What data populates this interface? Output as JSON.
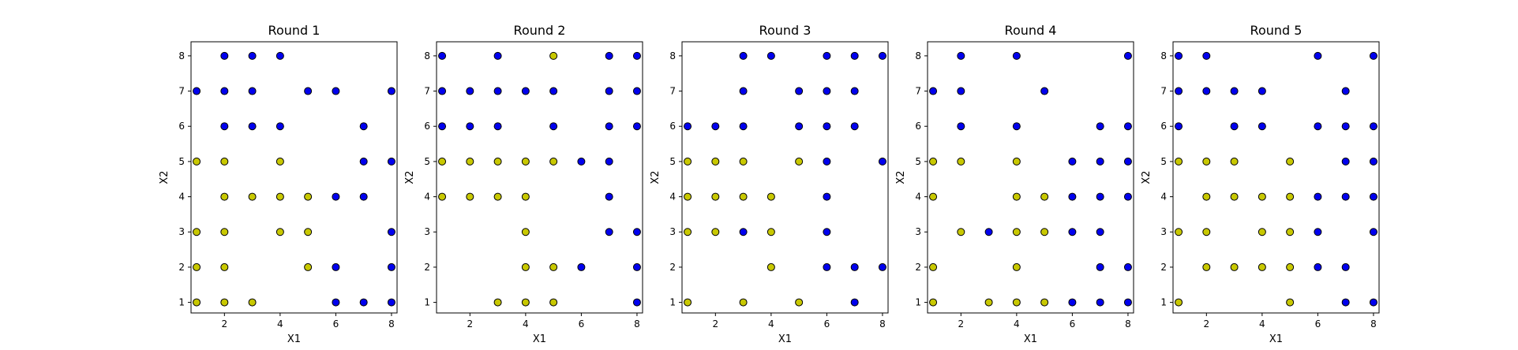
{
  "chart_data": [
    {
      "type": "scatter",
      "title": "Round 1",
      "xlabel": "X1",
      "ylabel": "X2",
      "xlim": [
        0.8,
        8.2
      ],
      "ylim": [
        0.7,
        8.4
      ],
      "xticks": [
        2,
        4,
        6,
        8
      ],
      "yticks": [
        1,
        2,
        3,
        4,
        5,
        6,
        7,
        8
      ],
      "colors": {
        "yellow": "#c8c800",
        "blue": "#0000ee"
      },
      "points": [
        {
          "x": 2,
          "y": 8,
          "c": "blue"
        },
        {
          "x": 3,
          "y": 8,
          "c": "blue"
        },
        {
          "x": 4,
          "y": 8,
          "c": "blue"
        },
        {
          "x": 1,
          "y": 7,
          "c": "blue"
        },
        {
          "x": 2,
          "y": 7,
          "c": "blue"
        },
        {
          "x": 3,
          "y": 7,
          "c": "blue"
        },
        {
          "x": 5,
          "y": 7,
          "c": "blue"
        },
        {
          "x": 6,
          "y": 7,
          "c": "blue"
        },
        {
          "x": 8,
          "y": 7,
          "c": "blue"
        },
        {
          "x": 2,
          "y": 6,
          "c": "blue"
        },
        {
          "x": 3,
          "y": 6,
          "c": "blue"
        },
        {
          "x": 4,
          "y": 6,
          "c": "blue"
        },
        {
          "x": 7,
          "y": 6,
          "c": "blue"
        },
        {
          "x": 1,
          "y": 5,
          "c": "yellow"
        },
        {
          "x": 2,
          "y": 5,
          "c": "yellow"
        },
        {
          "x": 4,
          "y": 5,
          "c": "yellow"
        },
        {
          "x": 7,
          "y": 5,
          "c": "blue"
        },
        {
          "x": 8,
          "y": 5,
          "c": "blue"
        },
        {
          "x": 2,
          "y": 4,
          "c": "yellow"
        },
        {
          "x": 3,
          "y": 4,
          "c": "yellow"
        },
        {
          "x": 4,
          "y": 4,
          "c": "yellow"
        },
        {
          "x": 5,
          "y": 4,
          "c": "yellow"
        },
        {
          "x": 6,
          "y": 4,
          "c": "blue"
        },
        {
          "x": 7,
          "y": 4,
          "c": "blue"
        },
        {
          "x": 1,
          "y": 3,
          "c": "yellow"
        },
        {
          "x": 2,
          "y": 3,
          "c": "yellow"
        },
        {
          "x": 4,
          "y": 3,
          "c": "yellow"
        },
        {
          "x": 5,
          "y": 3,
          "c": "yellow"
        },
        {
          "x": 8,
          "y": 3,
          "c": "blue"
        },
        {
          "x": 1,
          "y": 2,
          "c": "yellow"
        },
        {
          "x": 2,
          "y": 2,
          "c": "yellow"
        },
        {
          "x": 5,
          "y": 2,
          "c": "yellow"
        },
        {
          "x": 6,
          "y": 2,
          "c": "blue"
        },
        {
          "x": 8,
          "y": 2,
          "c": "blue"
        },
        {
          "x": 1,
          "y": 1,
          "c": "yellow"
        },
        {
          "x": 2,
          "y": 1,
          "c": "yellow"
        },
        {
          "x": 3,
          "y": 1,
          "c": "yellow"
        },
        {
          "x": 6,
          "y": 1,
          "c": "blue"
        },
        {
          "x": 7,
          "y": 1,
          "c": "blue"
        },
        {
          "x": 8,
          "y": 1,
          "c": "blue"
        }
      ]
    },
    {
      "type": "scatter",
      "title": "Round 2",
      "xlabel": "X1",
      "ylabel": "X2",
      "xlim": [
        0.8,
        8.2
      ],
      "ylim": [
        0.7,
        8.4
      ],
      "xticks": [
        2,
        4,
        6,
        8
      ],
      "yticks": [
        1,
        2,
        3,
        4,
        5,
        6,
        7,
        8
      ],
      "colors": {
        "yellow": "#c8c800",
        "blue": "#0000ee"
      },
      "points": [
        {
          "x": 1,
          "y": 8,
          "c": "blue"
        },
        {
          "x": 3,
          "y": 8,
          "c": "blue"
        },
        {
          "x": 5,
          "y": 8,
          "c": "yellow"
        },
        {
          "x": 7,
          "y": 8,
          "c": "blue"
        },
        {
          "x": 8,
          "y": 8,
          "c": "blue"
        },
        {
          "x": 1,
          "y": 7,
          "c": "blue"
        },
        {
          "x": 2,
          "y": 7,
          "c": "blue"
        },
        {
          "x": 3,
          "y": 7,
          "c": "blue"
        },
        {
          "x": 4,
          "y": 7,
          "c": "blue"
        },
        {
          "x": 5,
          "y": 7,
          "c": "blue"
        },
        {
          "x": 7,
          "y": 7,
          "c": "blue"
        },
        {
          "x": 8,
          "y": 7,
          "c": "blue"
        },
        {
          "x": 1,
          "y": 6,
          "c": "blue"
        },
        {
          "x": 2,
          "y": 6,
          "c": "blue"
        },
        {
          "x": 3,
          "y": 6,
          "c": "blue"
        },
        {
          "x": 5,
          "y": 6,
          "c": "blue"
        },
        {
          "x": 7,
          "y": 6,
          "c": "blue"
        },
        {
          "x": 8,
          "y": 6,
          "c": "blue"
        },
        {
          "x": 1,
          "y": 5,
          "c": "yellow"
        },
        {
          "x": 2,
          "y": 5,
          "c": "yellow"
        },
        {
          "x": 3,
          "y": 5,
          "c": "yellow"
        },
        {
          "x": 4,
          "y": 5,
          "c": "yellow"
        },
        {
          "x": 5,
          "y": 5,
          "c": "yellow"
        },
        {
          "x": 6,
          "y": 5,
          "c": "blue"
        },
        {
          "x": 7,
          "y": 5,
          "c": "blue"
        },
        {
          "x": 1,
          "y": 4,
          "c": "yellow"
        },
        {
          "x": 2,
          "y": 4,
          "c": "yellow"
        },
        {
          "x": 3,
          "y": 4,
          "c": "yellow"
        },
        {
          "x": 4,
          "y": 4,
          "c": "yellow"
        },
        {
          "x": 7,
          "y": 4,
          "c": "blue"
        },
        {
          "x": 4,
          "y": 3,
          "c": "yellow"
        },
        {
          "x": 7,
          "y": 3,
          "c": "blue"
        },
        {
          "x": 8,
          "y": 3,
          "c": "blue"
        },
        {
          "x": 4,
          "y": 2,
          "c": "yellow"
        },
        {
          "x": 5,
          "y": 2,
          "c": "yellow"
        },
        {
          "x": 6,
          "y": 2,
          "c": "blue"
        },
        {
          "x": 8,
          "y": 2,
          "c": "blue"
        },
        {
          "x": 3,
          "y": 1,
          "c": "yellow"
        },
        {
          "x": 4,
          "y": 1,
          "c": "yellow"
        },
        {
          "x": 5,
          "y": 1,
          "c": "yellow"
        },
        {
          "x": 8,
          "y": 1,
          "c": "blue"
        }
      ]
    },
    {
      "type": "scatter",
      "title": "Round 3",
      "xlabel": "X1",
      "ylabel": "X2",
      "xlim": [
        0.8,
        8.2
      ],
      "ylim": [
        0.7,
        8.4
      ],
      "xticks": [
        2,
        4,
        6,
        8
      ],
      "yticks": [
        1,
        2,
        3,
        4,
        5,
        6,
        7,
        8
      ],
      "colors": {
        "yellow": "#c8c800",
        "blue": "#0000ee"
      },
      "points": [
        {
          "x": 3,
          "y": 8,
          "c": "blue"
        },
        {
          "x": 4,
          "y": 8,
          "c": "blue"
        },
        {
          "x": 6,
          "y": 8,
          "c": "blue"
        },
        {
          "x": 7,
          "y": 8,
          "c": "blue"
        },
        {
          "x": 8,
          "y": 8,
          "c": "blue"
        },
        {
          "x": 3,
          "y": 7,
          "c": "blue"
        },
        {
          "x": 5,
          "y": 7,
          "c": "blue"
        },
        {
          "x": 6,
          "y": 7,
          "c": "blue"
        },
        {
          "x": 7,
          "y": 7,
          "c": "blue"
        },
        {
          "x": 1,
          "y": 6,
          "c": "blue"
        },
        {
          "x": 2,
          "y": 6,
          "c": "blue"
        },
        {
          "x": 3,
          "y": 6,
          "c": "blue"
        },
        {
          "x": 5,
          "y": 6,
          "c": "blue"
        },
        {
          "x": 6,
          "y": 6,
          "c": "blue"
        },
        {
          "x": 7,
          "y": 6,
          "c": "blue"
        },
        {
          "x": 1,
          "y": 5,
          "c": "yellow"
        },
        {
          "x": 2,
          "y": 5,
          "c": "yellow"
        },
        {
          "x": 3,
          "y": 5,
          "c": "yellow"
        },
        {
          "x": 5,
          "y": 5,
          "c": "yellow"
        },
        {
          "x": 6,
          "y": 5,
          "c": "blue"
        },
        {
          "x": 8,
          "y": 5,
          "c": "blue"
        },
        {
          "x": 1,
          "y": 4,
          "c": "yellow"
        },
        {
          "x": 2,
          "y": 4,
          "c": "yellow"
        },
        {
          "x": 3,
          "y": 4,
          "c": "yellow"
        },
        {
          "x": 4,
          "y": 4,
          "c": "yellow"
        },
        {
          "x": 6,
          "y": 4,
          "c": "blue"
        },
        {
          "x": 1,
          "y": 3,
          "c": "yellow"
        },
        {
          "x": 2,
          "y": 3,
          "c": "yellow"
        },
        {
          "x": 3,
          "y": 3,
          "c": "blue"
        },
        {
          "x": 4,
          "y": 3,
          "c": "yellow"
        },
        {
          "x": 6,
          "y": 3,
          "c": "blue"
        },
        {
          "x": 4,
          "y": 2,
          "c": "yellow"
        },
        {
          "x": 6,
          "y": 2,
          "c": "blue"
        },
        {
          "x": 7,
          "y": 2,
          "c": "blue"
        },
        {
          "x": 8,
          "y": 2,
          "c": "blue"
        },
        {
          "x": 1,
          "y": 1,
          "c": "yellow"
        },
        {
          "x": 3,
          "y": 1,
          "c": "yellow"
        },
        {
          "x": 5,
          "y": 1,
          "c": "yellow"
        },
        {
          "x": 7,
          "y": 1,
          "c": "blue"
        }
      ]
    },
    {
      "type": "scatter",
      "title": "Round 4",
      "xlabel": "X1",
      "ylabel": "X2",
      "xlim": [
        0.8,
        8.2
      ],
      "ylim": [
        0.7,
        8.4
      ],
      "xticks": [
        2,
        4,
        6,
        8
      ],
      "yticks": [
        1,
        2,
        3,
        4,
        5,
        6,
        7,
        8
      ],
      "colors": {
        "yellow": "#c8c800",
        "blue": "#0000ee"
      },
      "points": [
        {
          "x": 2,
          "y": 8,
          "c": "blue"
        },
        {
          "x": 4,
          "y": 8,
          "c": "blue"
        },
        {
          "x": 8,
          "y": 8,
          "c": "blue"
        },
        {
          "x": 1,
          "y": 7,
          "c": "blue"
        },
        {
          "x": 2,
          "y": 7,
          "c": "blue"
        },
        {
          "x": 5,
          "y": 7,
          "c": "blue"
        },
        {
          "x": 2,
          "y": 6,
          "c": "blue"
        },
        {
          "x": 4,
          "y": 6,
          "c": "blue"
        },
        {
          "x": 7,
          "y": 6,
          "c": "blue"
        },
        {
          "x": 8,
          "y": 6,
          "c": "blue"
        },
        {
          "x": 1,
          "y": 5,
          "c": "yellow"
        },
        {
          "x": 2,
          "y": 5,
          "c": "yellow"
        },
        {
          "x": 4,
          "y": 5,
          "c": "yellow"
        },
        {
          "x": 6,
          "y": 5,
          "c": "blue"
        },
        {
          "x": 7,
          "y": 5,
          "c": "blue"
        },
        {
          "x": 8,
          "y": 5,
          "c": "blue"
        },
        {
          "x": 1,
          "y": 4,
          "c": "yellow"
        },
        {
          "x": 4,
          "y": 4,
          "c": "yellow"
        },
        {
          "x": 5,
          "y": 4,
          "c": "yellow"
        },
        {
          "x": 6,
          "y": 4,
          "c": "blue"
        },
        {
          "x": 7,
          "y": 4,
          "c": "blue"
        },
        {
          "x": 8,
          "y": 4,
          "c": "blue"
        },
        {
          "x": 2,
          "y": 3,
          "c": "yellow"
        },
        {
          "x": 3,
          "y": 3,
          "c": "blue"
        },
        {
          "x": 4,
          "y": 3,
          "c": "yellow"
        },
        {
          "x": 5,
          "y": 3,
          "c": "yellow"
        },
        {
          "x": 6,
          "y": 3,
          "c": "blue"
        },
        {
          "x": 7,
          "y": 3,
          "c": "blue"
        },
        {
          "x": 1,
          "y": 2,
          "c": "yellow"
        },
        {
          "x": 4,
          "y": 2,
          "c": "yellow"
        },
        {
          "x": 7,
          "y": 2,
          "c": "blue"
        },
        {
          "x": 8,
          "y": 2,
          "c": "blue"
        },
        {
          "x": 1,
          "y": 1,
          "c": "yellow"
        },
        {
          "x": 3,
          "y": 1,
          "c": "yellow"
        },
        {
          "x": 4,
          "y": 1,
          "c": "yellow"
        },
        {
          "x": 5,
          "y": 1,
          "c": "yellow"
        },
        {
          "x": 6,
          "y": 1,
          "c": "blue"
        },
        {
          "x": 7,
          "y": 1,
          "c": "blue"
        },
        {
          "x": 8,
          "y": 1,
          "c": "blue"
        }
      ]
    },
    {
      "type": "scatter",
      "title": "Round 5",
      "xlabel": "X1",
      "ylabel": "X2",
      "xlim": [
        0.8,
        8.2
      ],
      "ylim": [
        0.7,
        8.4
      ],
      "xticks": [
        2,
        4,
        6,
        8
      ],
      "yticks": [
        1,
        2,
        3,
        4,
        5,
        6,
        7,
        8
      ],
      "colors": {
        "yellow": "#c8c800",
        "blue": "#0000ee"
      },
      "points": [
        {
          "x": 1,
          "y": 8,
          "c": "blue"
        },
        {
          "x": 2,
          "y": 8,
          "c": "blue"
        },
        {
          "x": 6,
          "y": 8,
          "c": "blue"
        },
        {
          "x": 8,
          "y": 8,
          "c": "blue"
        },
        {
          "x": 1,
          "y": 7,
          "c": "blue"
        },
        {
          "x": 2,
          "y": 7,
          "c": "blue"
        },
        {
          "x": 3,
          "y": 7,
          "c": "blue"
        },
        {
          "x": 4,
          "y": 7,
          "c": "blue"
        },
        {
          "x": 7,
          "y": 7,
          "c": "blue"
        },
        {
          "x": 1,
          "y": 6,
          "c": "blue"
        },
        {
          "x": 3,
          "y": 6,
          "c": "blue"
        },
        {
          "x": 4,
          "y": 6,
          "c": "blue"
        },
        {
          "x": 6,
          "y": 6,
          "c": "blue"
        },
        {
          "x": 7,
          "y": 6,
          "c": "blue"
        },
        {
          "x": 8,
          "y": 6,
          "c": "blue"
        },
        {
          "x": 1,
          "y": 5,
          "c": "yellow"
        },
        {
          "x": 2,
          "y": 5,
          "c": "yellow"
        },
        {
          "x": 3,
          "y": 5,
          "c": "yellow"
        },
        {
          "x": 5,
          "y": 5,
          "c": "yellow"
        },
        {
          "x": 7,
          "y": 5,
          "c": "blue"
        },
        {
          "x": 8,
          "y": 5,
          "c": "blue"
        },
        {
          "x": 2,
          "y": 4,
          "c": "yellow"
        },
        {
          "x": 3,
          "y": 4,
          "c": "yellow"
        },
        {
          "x": 4,
          "y": 4,
          "c": "yellow"
        },
        {
          "x": 5,
          "y": 4,
          "c": "yellow"
        },
        {
          "x": 6,
          "y": 4,
          "c": "blue"
        },
        {
          "x": 7,
          "y": 4,
          "c": "blue"
        },
        {
          "x": 8,
          "y": 4,
          "c": "blue"
        },
        {
          "x": 1,
          "y": 3,
          "c": "yellow"
        },
        {
          "x": 2,
          "y": 3,
          "c": "yellow"
        },
        {
          "x": 4,
          "y": 3,
          "c": "yellow"
        },
        {
          "x": 5,
          "y": 3,
          "c": "yellow"
        },
        {
          "x": 6,
          "y": 3,
          "c": "blue"
        },
        {
          "x": 8,
          "y": 3,
          "c": "blue"
        },
        {
          "x": 2,
          "y": 2,
          "c": "yellow"
        },
        {
          "x": 3,
          "y": 2,
          "c": "yellow"
        },
        {
          "x": 4,
          "y": 2,
          "c": "yellow"
        },
        {
          "x": 5,
          "y": 2,
          "c": "yellow"
        },
        {
          "x": 6,
          "y": 2,
          "c": "blue"
        },
        {
          "x": 7,
          "y": 2,
          "c": "blue"
        },
        {
          "x": 1,
          "y": 1,
          "c": "yellow"
        },
        {
          "x": 5,
          "y": 1,
          "c": "yellow"
        },
        {
          "x": 7,
          "y": 1,
          "c": "blue"
        },
        {
          "x": 8,
          "y": 1,
          "c": "blue"
        }
      ]
    }
  ]
}
